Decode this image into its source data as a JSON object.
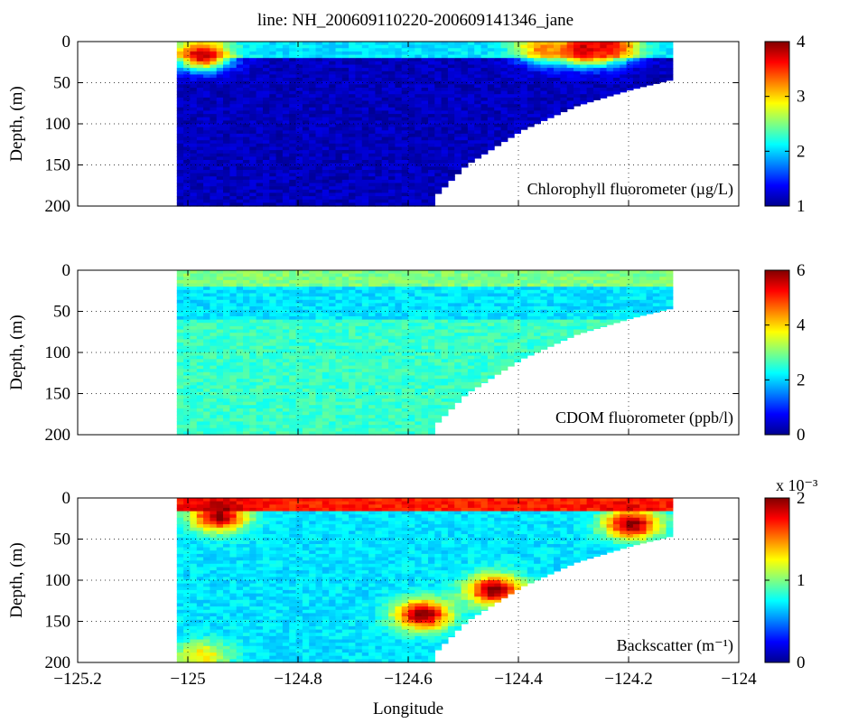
{
  "title": "line: NH_200609110220-200609141346_jane",
  "xlabel": "Longitude",
  "ylabel": "Depth, (m)",
  "colormap": [
    "#00008f",
    "#0000ff",
    "#0080ff",
    "#00ffff",
    "#80ff80",
    "#ffff00",
    "#ff8000",
    "#ff0000",
    "#800000"
  ],
  "chart_data": [
    {
      "type": "heatmap",
      "annotation": "Chlorophyll fluorometer (µg/L)",
      "xlim": [
        -125.2,
        -124.0
      ],
      "xticks": [
        "-125.2",
        "-125",
        "-124.8",
        "-124.6",
        "-124.4",
        "-124.2",
        "-124"
      ],
      "ylim": [
        0,
        200
      ],
      "yticks": [
        "0",
        "50",
        "100",
        "150",
        "200"
      ],
      "clim": [
        1,
        4
      ],
      "cticks": [
        "1",
        "2",
        "3",
        "4"
      ],
      "cmult": "",
      "grid": true,
      "section_lon_range": [
        -125.02,
        -124.12
      ],
      "bottom_profile": [
        [
          -124.56,
          190
        ],
        [
          -124.5,
          150
        ],
        [
          -124.4,
          108
        ],
        [
          -124.3,
          78
        ],
        [
          -124.2,
          58
        ],
        [
          -124.12,
          45
        ]
      ],
      "layers": [
        {
          "depth": [
            0,
            20
          ],
          "level": 0.35
        },
        {
          "depth": [
            20,
            200
          ],
          "level": 0.05
        }
      ],
      "hotspots": [
        {
          "lon": -124.98,
          "depth": 15,
          "level": 0.95
        },
        {
          "lon": -124.29,
          "depth": 8,
          "level": 1.0
        },
        {
          "lon": -124.24,
          "depth": 5,
          "level": 0.9
        },
        {
          "lon": -124.36,
          "depth": 6,
          "level": 0.75
        }
      ]
    },
    {
      "type": "heatmap",
      "annotation": "CDOM fluorometer (ppb/l)",
      "xlim": [
        -125.2,
        -124.0
      ],
      "xticks": [
        "-125.2",
        "-125",
        "-124.8",
        "-124.6",
        "-124.4",
        "-124.2",
        "-124"
      ],
      "ylim": [
        0,
        200
      ],
      "yticks": [
        "0",
        "50",
        "100",
        "150",
        "200"
      ],
      "clim": [
        0,
        6
      ],
      "cticks": [
        "0",
        "2",
        "4",
        "6"
      ],
      "cmult": "",
      "grid": true,
      "section_lon_range": [
        -125.02,
        -124.12
      ],
      "bottom_profile": [
        [
          -124.56,
          190
        ],
        [
          -124.5,
          150
        ],
        [
          -124.4,
          108
        ],
        [
          -124.3,
          78
        ],
        [
          -124.2,
          58
        ],
        [
          -124.12,
          45
        ]
      ],
      "layers": [
        {
          "depth": [
            0,
            20
          ],
          "level": 0.5
        },
        {
          "depth": [
            20,
            60
          ],
          "level": 0.35
        },
        {
          "depth": [
            60,
            200
          ],
          "level": 0.43
        }
      ],
      "hotspots": []
    },
    {
      "type": "heatmap",
      "annotation": "Backscatter (m⁻¹)",
      "xlim": [
        -125.2,
        -124.0
      ],
      "xticks": [
        "-125.2",
        "-125",
        "-124.8",
        "-124.6",
        "-124.4",
        "-124.2",
        "-124"
      ],
      "ylim": [
        0,
        200
      ],
      "yticks": [
        "0",
        "50",
        "100",
        "150",
        "200"
      ],
      "clim": [
        0,
        0.002
      ],
      "cticks": [
        "0",
        "1",
        "2"
      ],
      "cmult": "x 10⁻³",
      "grid": true,
      "section_lon_range": [
        -125.02,
        -124.12
      ],
      "bottom_profile": [
        [
          -124.56,
          190
        ],
        [
          -124.5,
          150
        ],
        [
          -124.4,
          108
        ],
        [
          -124.3,
          78
        ],
        [
          -124.2,
          58
        ],
        [
          -124.12,
          45
        ]
      ],
      "layers": [
        {
          "depth": [
            0,
            15
          ],
          "level": 0.85
        },
        {
          "depth": [
            15,
            200
          ],
          "level": 0.35
        }
      ],
      "hotspots": [
        {
          "lon": -124.58,
          "depth": 140,
          "level": 1.0
        },
        {
          "lon": -124.45,
          "depth": 110,
          "level": 1.0
        },
        {
          "lon": -124.2,
          "depth": 30,
          "level": 1.0
        },
        {
          "lon": -124.95,
          "depth": 20,
          "level": 1.0
        },
        {
          "lon": -124.98,
          "depth": 190,
          "level": 0.65
        }
      ]
    }
  ]
}
